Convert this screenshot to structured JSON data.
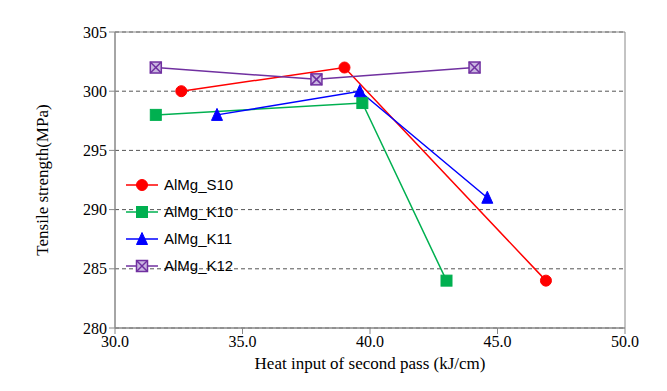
{
  "chart_data": {
    "type": "line",
    "x_label": "Heat input of second pass (kJ/cm)",
    "y_label": "Tensile strength(MPa)",
    "xlim": [
      30,
      50
    ],
    "xticks": [
      {
        "value": 30,
        "label": "30.0"
      },
      {
        "value": 35,
        "label": "35.0"
      },
      {
        "value": 40,
        "label": "40.0"
      },
      {
        "value": 45,
        "label": "45.0"
      },
      {
        "value": 50,
        "label": "50.0"
      }
    ],
    "ylim": [
      280,
      305
    ],
    "yticks": [
      280,
      285,
      290,
      295,
      300,
      305
    ],
    "grid": true,
    "legend": "lower left",
    "series": [
      {
        "name": "AlMg_S10",
        "color": "#ff0000",
        "marker": "circle",
        "x": [
          32.6,
          39.0,
          46.9
        ],
        "values": [
          300,
          302,
          284
        ]
      },
      {
        "name": "AlMg_K10",
        "color": "#00b050",
        "marker": "square",
        "x": [
          31.6,
          39.7,
          43.0
        ],
        "values": [
          298,
          299,
          284
        ]
      },
      {
        "name": "AlMg_K11",
        "color": "#0000ff",
        "marker": "triangle",
        "x": [
          34.0,
          39.6,
          44.6
        ],
        "values": [
          298,
          300,
          291
        ]
      },
      {
        "name": "AlMg_K12",
        "color": "#7030a0",
        "marker": "x-square",
        "x": [
          31.6,
          37.9,
          44.1
        ],
        "values": [
          302,
          301,
          302
        ]
      }
    ]
  }
}
